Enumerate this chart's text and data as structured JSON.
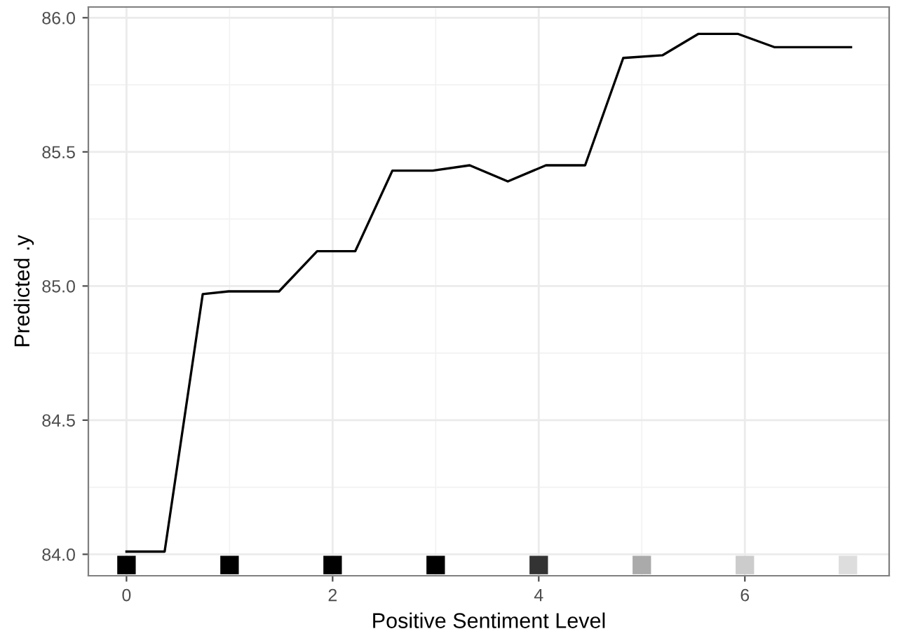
{
  "chart_data": {
    "type": "line",
    "xlabel": "Positive Sentiment Level",
    "ylabel": "Predicted .y",
    "xlim": [
      -0.37,
      7.4
    ],
    "ylim": [
      83.92,
      86.04
    ],
    "xticks": [
      0,
      2,
      4,
      6
    ],
    "yticks": [
      {
        "value": 84,
        "label": "84.0"
      },
      84.5,
      {
        "value": 85,
        "label": "85.0"
      },
      85.5,
      {
        "value": 86,
        "label": "86.0"
      }
    ],
    "grid": true,
    "series": [
      {
        "color": "#000000",
        "x": [
          0,
          0.37,
          0.74,
          0.99,
          1.48,
          1.85,
          2.22,
          2.58,
          2.97,
          3.33,
          3.7,
          4.07,
          4.45,
          4.82,
          5.2,
          5.55,
          5.93,
          6.29,
          7.03
        ],
        "values": [
          84.01,
          84.01,
          84.97,
          84.98,
          84.98,
          85.13,
          85.13,
          85.43,
          85.43,
          85.45,
          85.39,
          85.45,
          85.45,
          85.85,
          85.86,
          85.94,
          85.94,
          85.89,
          85.89
        ]
      },
      {
        "type": "scatter",
        "marker": "square",
        "x": [
          0,
          1,
          2,
          3,
          4,
          5,
          6,
          7
        ],
        "values": [
          83.96,
          83.96,
          83.96,
          83.96,
          83.96,
          83.96,
          83.96,
          83.96
        ],
        "colors": [
          "#000000",
          "#000000",
          "#000000",
          "#000000",
          "#333333",
          "#aaaaaa",
          "#cccccc",
          "#dddddd"
        ]
      }
    ]
  }
}
